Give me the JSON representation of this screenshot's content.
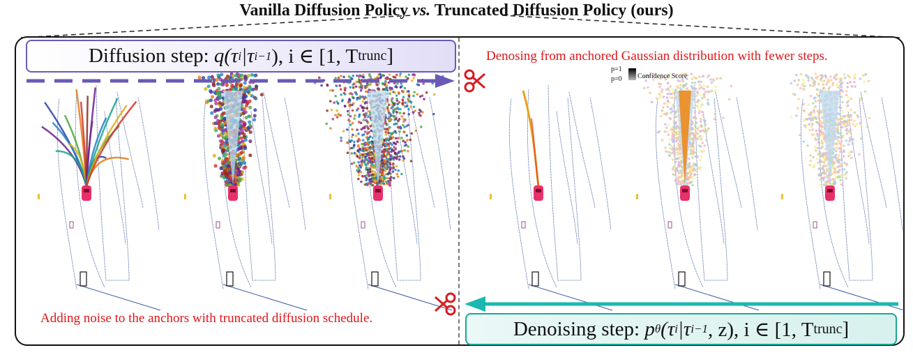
{
  "title": {
    "part1": "Vanilla Diffusion Policy",
    "vs": "vs.",
    "part2": "Truncated Diffusion Policy (ours)"
  },
  "diffusion_step": {
    "label": "Diffusion step:",
    "formula": "q(τ",
    "sup1": "i",
    "mid": "|τ",
    "sup2": "i−1",
    "tail": "), i ∈ [1, T",
    "sub": "trunc",
    "end": "]"
  },
  "denoising_step": {
    "label": "Denoising step:",
    "p": "p",
    "theta": "θ",
    "formula": "(τ",
    "sup1": "i",
    "mid": "|τ",
    "sup2": "i−1",
    "tail": ", z), i ∈ [1, T",
    "sub": "trunc",
    "end": "]"
  },
  "notes": {
    "top": "Denosing from anchored Gaussian distribution with fewer steps.",
    "bottom": "Adding noise to the anchors with truncated diffusion schedule."
  },
  "legend": {
    "p1": "p=1",
    "p0": "p=0",
    "label": "Confidence Score"
  },
  "icons": {
    "scissors": "scissors-icon",
    "car": "car-icon"
  },
  "colors": {
    "diffusion_arrow": "#6a5ab5",
    "denoise_arrow": "#1ab8b0",
    "note_red": "#e0171b",
    "car": "#e8306b",
    "lane": "#3d5aa3"
  }
}
